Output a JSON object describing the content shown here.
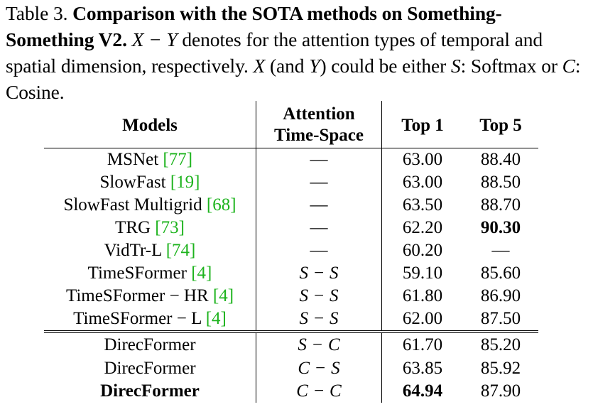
{
  "caption": {
    "label": "Table 3.",
    "title": "Comparison with the SOTA methods on Something-Something V2.",
    "body_1": "X − Y",
    "body_2": " denotes for the attention types of temporal and spatial dimension, respectively. ",
    "body_3": "X",
    "body_4": " (and ",
    "body_5": "Y",
    "body_6": ") could be either ",
    "body_7": "S",
    "body_8": ": Softmax or ",
    "body_9": "C",
    "body_10": ": Cosine."
  },
  "table": {
    "headers": {
      "models": "Models",
      "attention_line1": "Attention",
      "attention_line2": "Time-Space",
      "top1": "Top 1",
      "top5": "Top 5"
    },
    "rows": [
      {
        "model": "MSNet",
        "cite": "[77]",
        "attention": "—",
        "top1": "63.00",
        "top5": "88.40"
      },
      {
        "model": "SlowFast",
        "cite": "[19]",
        "attention": "—",
        "top1": "63.00",
        "top5": "88.50"
      },
      {
        "model": "SlowFast Multigrid",
        "cite": "[68]",
        "attention": "—",
        "top1": "63.50",
        "top5": "88.70"
      },
      {
        "model": "TRG",
        "cite": "[73]",
        "attention": "—",
        "top1": "62.20",
        "top5": "90.30"
      },
      {
        "model": "VidTr-L",
        "cite": "[74]",
        "attention": "—",
        "top1": "60.20",
        "top5": "—"
      },
      {
        "model": "TimeSFormer",
        "cite": "[4]",
        "att_t": "S",
        "att_s": "S",
        "top1": "59.10",
        "top5": "85.60"
      },
      {
        "model": "TimeSFormer − HR",
        "cite": "[4]",
        "att_t": "S",
        "att_s": "S",
        "top1": "61.80",
        "top5": "86.90"
      },
      {
        "model": "TimeSFormer − L",
        "cite": "[4]",
        "att_t": "S",
        "att_s": "S",
        "top1": "62.00",
        "top5": "87.50"
      },
      {
        "model": "DirecFormer",
        "att_t": "S",
        "att_s": "C",
        "top1": "61.70",
        "top5": "85.20"
      },
      {
        "model": "DirecFormer",
        "att_t": "C",
        "att_s": "S",
        "top1": "63.85",
        "top5": "85.92"
      },
      {
        "model": "DirecFormer",
        "att_t": "C",
        "att_s": "C",
        "top1": "64.94",
        "top5": "87.90"
      }
    ],
    "minus": "−"
  }
}
